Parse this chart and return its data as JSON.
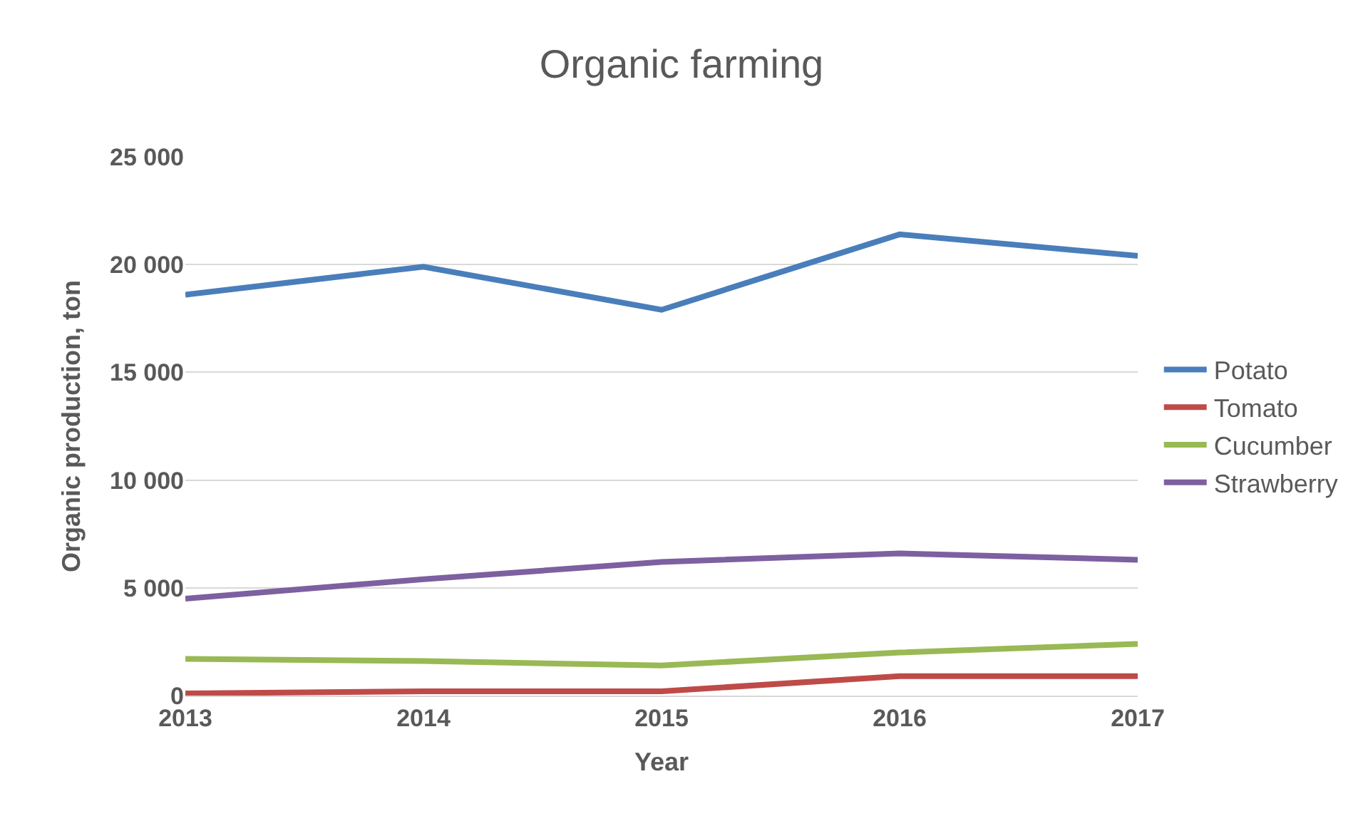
{
  "chart_data": {
    "type": "line",
    "title": "Organic farming",
    "xlabel": "Year",
    "ylabel": "Organic production, ton",
    "categories": [
      "2013",
      "2014",
      "2015",
      "2016",
      "2017"
    ],
    "series": [
      {
        "name": "Potato",
        "color": "#4a7ebb",
        "values": [
          18600,
          19900,
          17900,
          21400,
          20400
        ]
      },
      {
        "name": "Tomato",
        "color": "#be4b48",
        "values": [
          100,
          200,
          200,
          900,
          900
        ]
      },
      {
        "name": "Cucumber",
        "color": "#98b954",
        "values": [
          1700,
          1600,
          1400,
          2000,
          2400
        ]
      },
      {
        "name": "Strawberry",
        "color": "#7d60a0",
        "values": [
          4500,
          5400,
          6200,
          6600,
          6300
        ]
      }
    ],
    "ylim": [
      0,
      25000
    ],
    "yticks": [
      {
        "value": 0,
        "label": "0"
      },
      {
        "value": 5000,
        "label": "5 000"
      },
      {
        "value": 10000,
        "label": "10 000"
      },
      {
        "value": 15000,
        "label": "15 000"
      },
      {
        "value": 20000,
        "label": "20 000"
      },
      {
        "value": 25000,
        "label": "25 000"
      }
    ],
    "grid": "y",
    "legend": "right",
    "marker": "none",
    "line_style": "solid"
  }
}
